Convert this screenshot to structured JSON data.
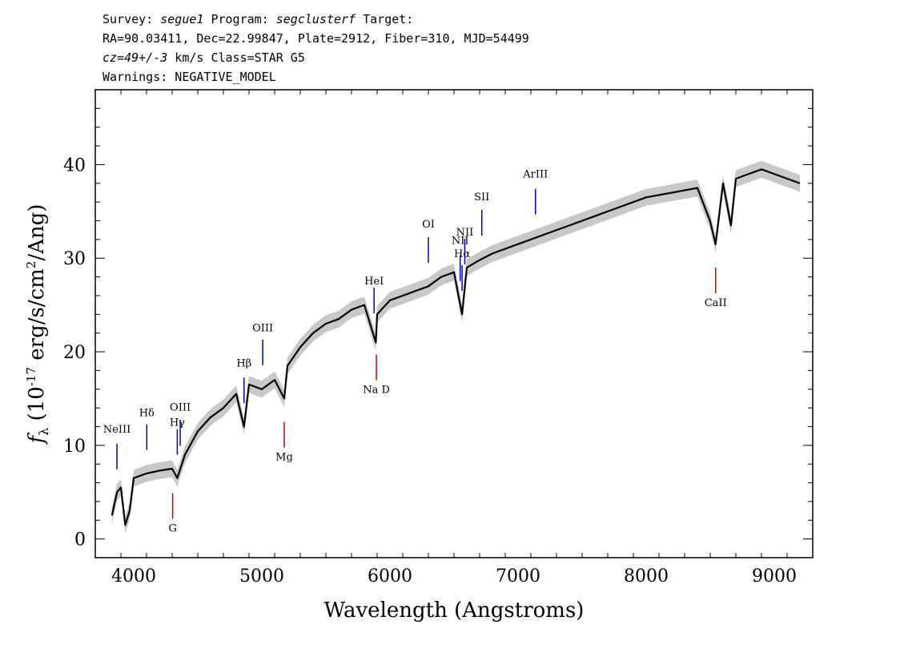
{
  "header": {
    "survey_label": "Survey:",
    "survey": "segue1",
    "program_label": "Program:",
    "program": "segclusterf",
    "target_label": "Target:",
    "line2": "RA=90.03411, Dec=22.99847, Plate=2912, Fiber=310, MJD=54499",
    "cz": "cz=49+/-3",
    "cz_rest": " km/s Class=STAR G5",
    "line4": "Warnings: NEGATIVE_MODEL"
  },
  "chart_data": {
    "type": "line",
    "xlabel": "Wavelength (Angstroms)",
    "ylabel": "f_λ (10^-17 erg/s/cm^2/Ang)",
    "xlim": [
      3700,
      9300
    ],
    "ylim": [
      -2,
      48
    ],
    "xticks": [
      4000,
      5000,
      6000,
      7000,
      8000,
      9000
    ],
    "yticks": [
      0,
      10,
      20,
      30,
      40
    ],
    "xtick_labels": [
      "4000",
      "5000",
      "6000",
      "7000",
      "8000",
      "9000"
    ],
    "ytick_labels": [
      "0",
      "10",
      "20",
      "30",
      "40"
    ],
    "grid": false,
    "series": [
      {
        "color": "#000000",
        "x": [
          3830,
          3870,
          3900,
          3934,
          3968,
          4000,
          4100,
          4200,
          4300,
          4340,
          4400,
          4500,
          4600,
          4700,
          4800,
          4861,
          4900,
          5000,
          5100,
          5175,
          5200,
          5300,
          5400,
          5500,
          5600,
          5700,
          5800,
          5890,
          5900,
          6000,
          6100,
          6200,
          6300,
          6400,
          6500,
          6563,
          6600,
          6700,
          6800,
          7000,
          7200,
          7400,
          7600,
          7800,
          8000,
          8200,
          8400,
          8498,
          8542,
          8600,
          8662,
          8700,
          8800,
          8900,
          9000,
          9100,
          9200
        ],
        "y": [
          2.5,
          5.0,
          5.5,
          1.5,
          3.0,
          6.5,
          7.0,
          7.3,
          7.5,
          6.5,
          9.0,
          11.5,
          13.0,
          14.0,
          15.5,
          12.0,
          16.5,
          16.0,
          17.0,
          15.0,
          18.5,
          20.5,
          22.0,
          23.0,
          23.5,
          24.5,
          25.0,
          21.0,
          24.0,
          25.5,
          26.0,
          26.5,
          27.0,
          28.0,
          28.5,
          24.0,
          29.0,
          29.8,
          30.5,
          31.5,
          32.5,
          33.5,
          34.5,
          35.5,
          36.5,
          37.0,
          37.5,
          34.0,
          31.5,
          38.0,
          33.5,
          38.5,
          39.0,
          39.5,
          39.0,
          38.5,
          38.0
        ]
      }
    ],
    "line_labels": [
      {
        "text": "NeIII",
        "x": 3869,
        "color": "#0000cc"
      },
      {
        "text": "Hδ",
        "x": 4102,
        "color": "#0000cc"
      },
      {
        "text": "Hγ",
        "x": 4340,
        "color": "#0000cc"
      },
      {
        "text": "OIII",
        "x": 4363,
        "color": "#0000cc"
      },
      {
        "text": "Hβ",
        "x": 4861,
        "color": "#0000cc"
      },
      {
        "text": "OIII",
        "x": 5007,
        "color": "#0000cc"
      },
      {
        "text": "HeI",
        "x": 5876,
        "color": "#0000cc"
      },
      {
        "text": "OI",
        "x": 6300,
        "color": "#0000cc"
      },
      {
        "text": "NII",
        "x": 6548,
        "color": "#0000cc"
      },
      {
        "text": "Hα",
        "x": 6563,
        "color": "#0000cc"
      },
      {
        "text": "NII",
        "x": 6584,
        "color": "#0000cc"
      },
      {
        "text": "SII",
        "x": 6717,
        "color": "#0000cc"
      },
      {
        "text": "ArIII",
        "x": 7136,
        "color": "#0000cc"
      },
      {
        "text": "G",
        "x": 4304,
        "color": "#cc0000"
      },
      {
        "text": "Mg",
        "x": 5175,
        "color": "#cc0000"
      },
      {
        "text": "Na D",
        "x": 5894,
        "color": "#cc0000"
      },
      {
        "text": "CaII",
        "x": 8542,
        "color": "#cc0000"
      }
    ]
  }
}
